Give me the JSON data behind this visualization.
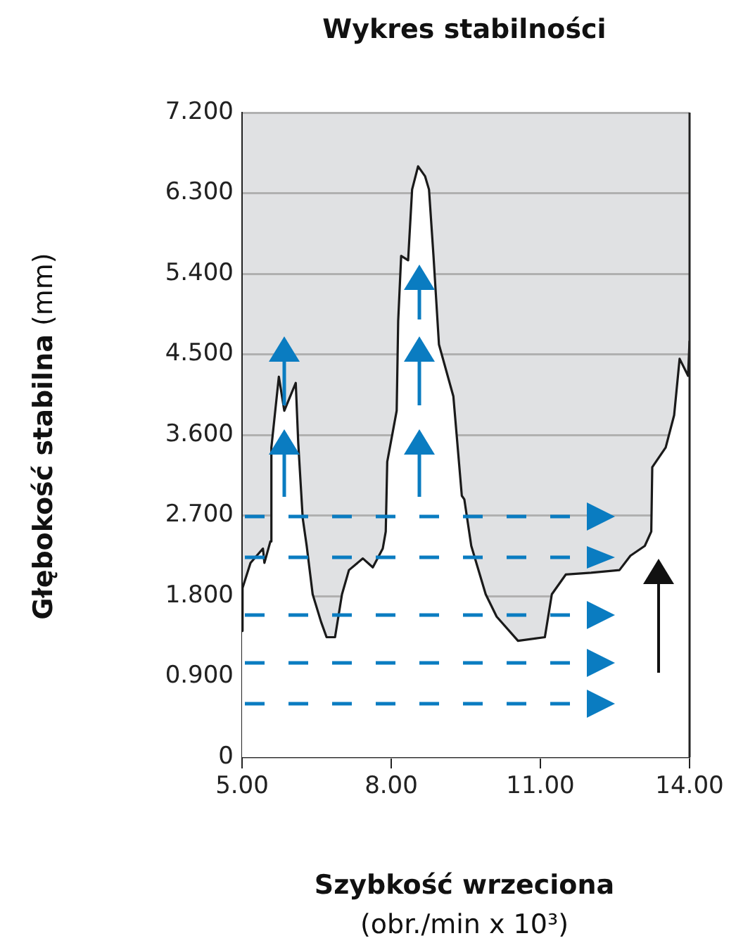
{
  "chart_data": {
    "type": "area",
    "title": "Wykres stabilności",
    "xlabel": "Szybkość wrzeciona (obr./min x 10³)",
    "ylabel": "Głębokość stabilna (mm)",
    "xlim": [
      5,
      14
    ],
    "xticks": [
      {
        "value": 5,
        "label": "5.00"
      },
      {
        "value": 8,
        "label": "8.00"
      },
      {
        "value": 11,
        "label": "11.00"
      },
      {
        "value": 14,
        "label": "14.00"
      }
    ],
    "ylim": [
      0,
      7.2
    ],
    "yticks": [
      0,
      {
        "value": 0.9,
        "label": "0.900"
      },
      {
        "value": 1.8,
        "label": "1.800"
      },
      {
        "value": 2.7,
        "label": "2.700"
      },
      {
        "value": 3.6,
        "label": "3.600"
      },
      {
        "value": 4.5,
        "label": "4.500"
      },
      {
        "value": 5.4,
        "label": "5.400"
      },
      {
        "value": 6.3,
        "label": "6.300"
      },
      {
        "value": 7.2,
        "label": "7.200"
      }
    ],
    "grid": "y",
    "legend": false,
    "marker": "none",
    "line_style": "solid",
    "series": [
      {
        "color": "#1a1a1a",
        "x": [
          5.0,
          5.01,
          5.17,
          5.42,
          5.45,
          5.57,
          5.59,
          5.74,
          5.85,
          6.08,
          6.13,
          6.22,
          6.3,
          6.42,
          6.59,
          6.7,
          6.87,
          7.01,
          7.15,
          7.43,
          7.63,
          7.83,
          7.89,
          7.92,
          8.11,
          8.14,
          8.2,
          8.34,
          8.42,
          8.54,
          8.68,
          8.76,
          8.85,
          8.96,
          9.25,
          9.42,
          9.47,
          9.61,
          9.9,
          10.12,
          10.55,
          11.09,
          11.23,
          11.51,
          12.02,
          12.59,
          12.81,
          13.1,
          13.23,
          13.25,
          13.52,
          13.69,
          13.8,
          13.97,
          14.0
        ],
        "values": [
          1.41,
          1.89,
          2.17,
          2.33,
          2.17,
          2.41,
          3.46,
          4.25,
          3.87,
          4.18,
          3.51,
          2.67,
          2.36,
          1.82,
          1.51,
          1.34,
          1.34,
          1.82,
          2.09,
          2.22,
          2.12,
          2.33,
          2.52,
          3.3,
          3.87,
          4.87,
          5.6,
          5.55,
          6.34,
          6.6,
          6.49,
          6.34,
          5.6,
          4.61,
          4.03,
          2.92,
          2.88,
          2.36,
          1.82,
          1.57,
          1.3,
          1.34,
          1.82,
          2.04,
          2.06,
          2.09,
          2.25,
          2.36,
          2.52,
          3.24,
          3.46,
          3.82,
          4.45,
          4.26,
          4.65
        ]
      }
    ]
  }
}
